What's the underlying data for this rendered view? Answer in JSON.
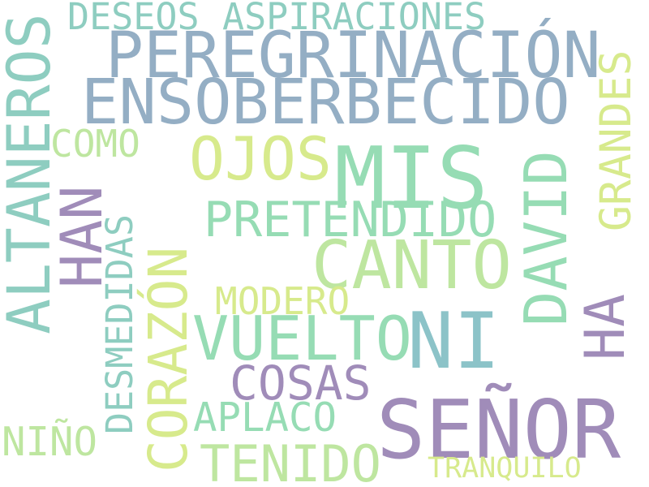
{
  "colors": {
    "teal": "#8ecdc0",
    "steel": "#94aec4",
    "purple": "#a08cb9",
    "yellow": "#d7ea8c",
    "lightgreen": "#bee6a0",
    "mint": "#96dcb4",
    "blue_teal": "#8cc3c8"
  },
  "words": {
    "deseos": "DESEOS",
    "aspiraciones": "ASPIRACIONES",
    "peregrinacion": "PEREGRINACIÓN",
    "ensoberbecido": "ENSOBERBECIDO",
    "altaneros": "ALTANEROS",
    "como": "COMO",
    "ojos": "OJOS",
    "mis": "MIS",
    "han": "HAN",
    "desmedidas": "DESMEDIDAS",
    "pretendido": "PRETENDIDO",
    "canto": "CANTO",
    "corazon": "CORAZÓN",
    "modero": "MODERO",
    "vuelto": "VUELTO",
    "ni": "NI",
    "david": "DAVID",
    "grandes": "GRANDES",
    "ha": "HA",
    "cosas": "COSAS",
    "senor": "SEÑOR",
    "aplaco": "APLACO",
    "nino": "NIÑO",
    "tenido": "TENIDO",
    "tranquilo": "TRANQUILO"
  }
}
